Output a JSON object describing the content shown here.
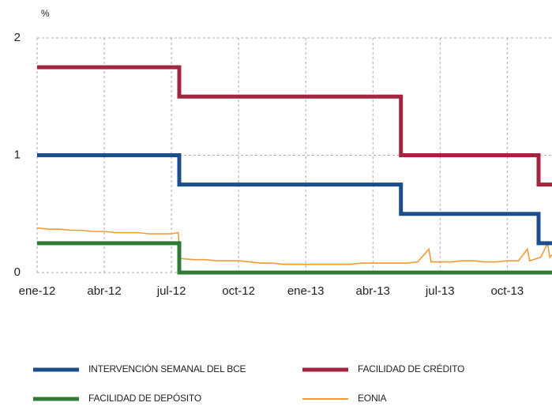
{
  "chart_data": {
    "type": "line",
    "ylabel": "%",
    "ylim": [
      0,
      2
    ],
    "yticks": [
      0,
      1,
      2
    ],
    "xlim": [
      0,
      23
    ],
    "xticks": [
      {
        "value": 0,
        "label": "ene-12"
      },
      {
        "value": 3,
        "label": "abr-12"
      },
      {
        "value": 6,
        "label": "jul-12"
      },
      {
        "value": 9,
        "label": "oct-12"
      },
      {
        "value": 12,
        "label": "ene-13"
      },
      {
        "value": 15,
        "label": "abr-13"
      },
      {
        "value": 18,
        "label": "jul-13"
      },
      {
        "value": 21,
        "label": "oct-13"
      }
    ],
    "grid": true,
    "series": [
      {
        "name": "INTERVENCIÓN SEMANAL DEL BCE",
        "color": "#1b4e8c",
        "x": [
          0,
          6.35,
          6.35,
          16.25,
          16.25,
          22.4,
          22.4,
          23
        ],
        "values": [
          1,
          1,
          0.75,
          0.75,
          0.5,
          0.5,
          0.25,
          0.25
        ]
      },
      {
        "name": "FACILIDAD DE CRÉDITO",
        "color": "#a2263f",
        "x": [
          0,
          6.35,
          6.35,
          16.25,
          16.25,
          22.4,
          22.4,
          23
        ],
        "values": [
          1.75,
          1.75,
          1.5,
          1.5,
          1,
          1,
          0.75,
          0.75
        ]
      },
      {
        "name": "FACILIDAD DE DEPÓSITO",
        "color": "#2f7a36",
        "x": [
          0,
          6.35,
          6.35,
          23
        ],
        "values": [
          0.25,
          0.25,
          0,
          0
        ]
      },
      {
        "name": "EONIA",
        "color": "#f29a34",
        "x": [
          0,
          0.5,
          1,
          1.5,
          2,
          2.5,
          3,
          3.5,
          4,
          4.5,
          5,
          5.5,
          6,
          6.3,
          6.4,
          7,
          7.5,
          8,
          8.5,
          9,
          9.5,
          10,
          10.5,
          11,
          11.5,
          12,
          12.5,
          13,
          13.5,
          14,
          14.5,
          15,
          15.5,
          16,
          16.5,
          17,
          17.5,
          17.6,
          18,
          18.5,
          19,
          19.5,
          20,
          20.5,
          21,
          21.5,
          21.9,
          22,
          22.5,
          22.8,
          22.9,
          23
        ],
        "values": [
          0.38,
          0.37,
          0.37,
          0.36,
          0.36,
          0.35,
          0.35,
          0.34,
          0.34,
          0.34,
          0.33,
          0.33,
          0.33,
          0.34,
          0.12,
          0.11,
          0.11,
          0.1,
          0.1,
          0.1,
          0.09,
          0.08,
          0.08,
          0.07,
          0.07,
          0.07,
          0.07,
          0.07,
          0.07,
          0.07,
          0.08,
          0.08,
          0.08,
          0.08,
          0.08,
          0.09,
          0.2,
          0.09,
          0.09,
          0.09,
          0.1,
          0.1,
          0.09,
          0.09,
          0.1,
          0.1,
          0.2,
          0.1,
          0.13,
          0.25,
          0.13,
          0.15
        ]
      }
    ]
  }
}
